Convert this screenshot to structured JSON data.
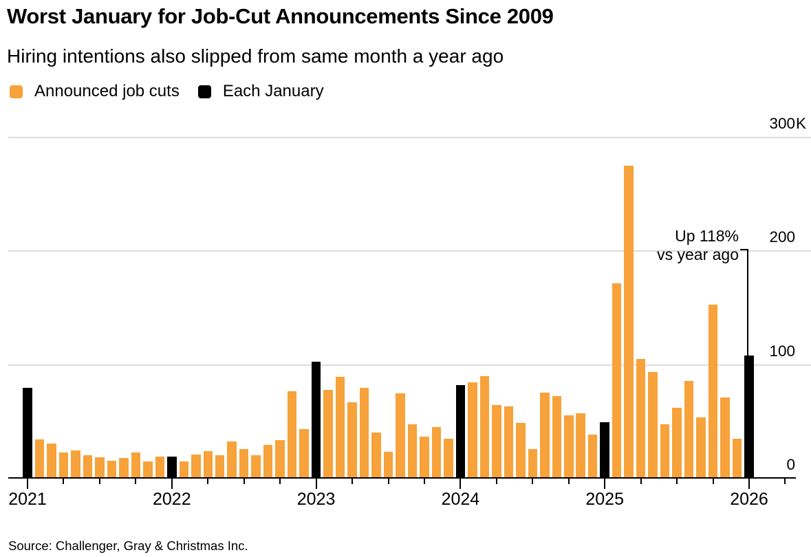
{
  "source_line": "Source: Challenger, Gray & Christmas Inc.",
  "chart_data": {
    "type": "bar",
    "title": "Worst January for Job-Cut Announcements Since 2009",
    "subtitle": "Hiring intentions also slipped from same month a year ago",
    "unit": "thousands of announced U.S. job cuts",
    "legend": [
      {
        "label": "Announced job cuts",
        "color": "#F7A23A"
      },
      {
        "label": "Each January",
        "color": "#000000"
      }
    ],
    "ylim": [
      0,
      300
    ],
    "yticks": [
      {
        "value": 300,
        "label": "300",
        "suffix": "K"
      },
      {
        "value": 200,
        "label": "200",
        "suffix": ""
      },
      {
        "value": 100,
        "label": "100",
        "suffix": ""
      },
      {
        "value": 0,
        "label": "0",
        "suffix": ""
      }
    ],
    "gridlines_at": [
      100,
      200,
      300
    ],
    "january_highlight": true,
    "years": [
      {
        "year": "2021",
        "monthly_values": [
          79.6,
          34.5,
          30.6,
          22.9,
          24.6,
          20.5,
          18.9,
          15.7,
          17.9,
          22.8,
          14.9,
          19.1
        ]
      },
      {
        "year": "2022",
        "monthly_values": [
          19.1,
          15.2,
          21.4,
          24.3,
          20.7,
          32.5,
          25.8,
          20.5,
          29.9,
          33.8,
          76.8,
          43.7
        ]
      },
      {
        "year": "2023",
        "monthly_values": [
          102.9,
          77.8,
          89.7,
          67.0,
          80.1,
          40.7,
          23.7,
          75.2,
          47.5,
          36.8,
          45.5,
          34.8
        ]
      },
      {
        "year": "2024",
        "monthly_values": [
          82.3,
          84.6,
          90.3,
          64.8,
          63.8,
          48.8,
          25.9,
          75.9,
          72.8,
          55.6,
          57.7,
          38.8
        ]
      },
      {
        "year": "2025",
        "monthly_values": [
          49.8,
          172.0,
          275.2,
          105.4,
          93.8,
          48.0,
          62.1,
          86.0,
          54.1,
          153.1,
          71.3,
          35.2
        ]
      },
      {
        "year": "2026",
        "monthly_values": [
          108.5
        ]
      }
    ],
    "annotation": {
      "line1": "Up 118%",
      "line2": "vs year ago",
      "target_month": "2026-01"
    },
    "colors": {
      "bar": "#F7A23A",
      "january_bar": "#000000",
      "gridline": "#dcdcdc",
      "axis": "#000000"
    }
  }
}
